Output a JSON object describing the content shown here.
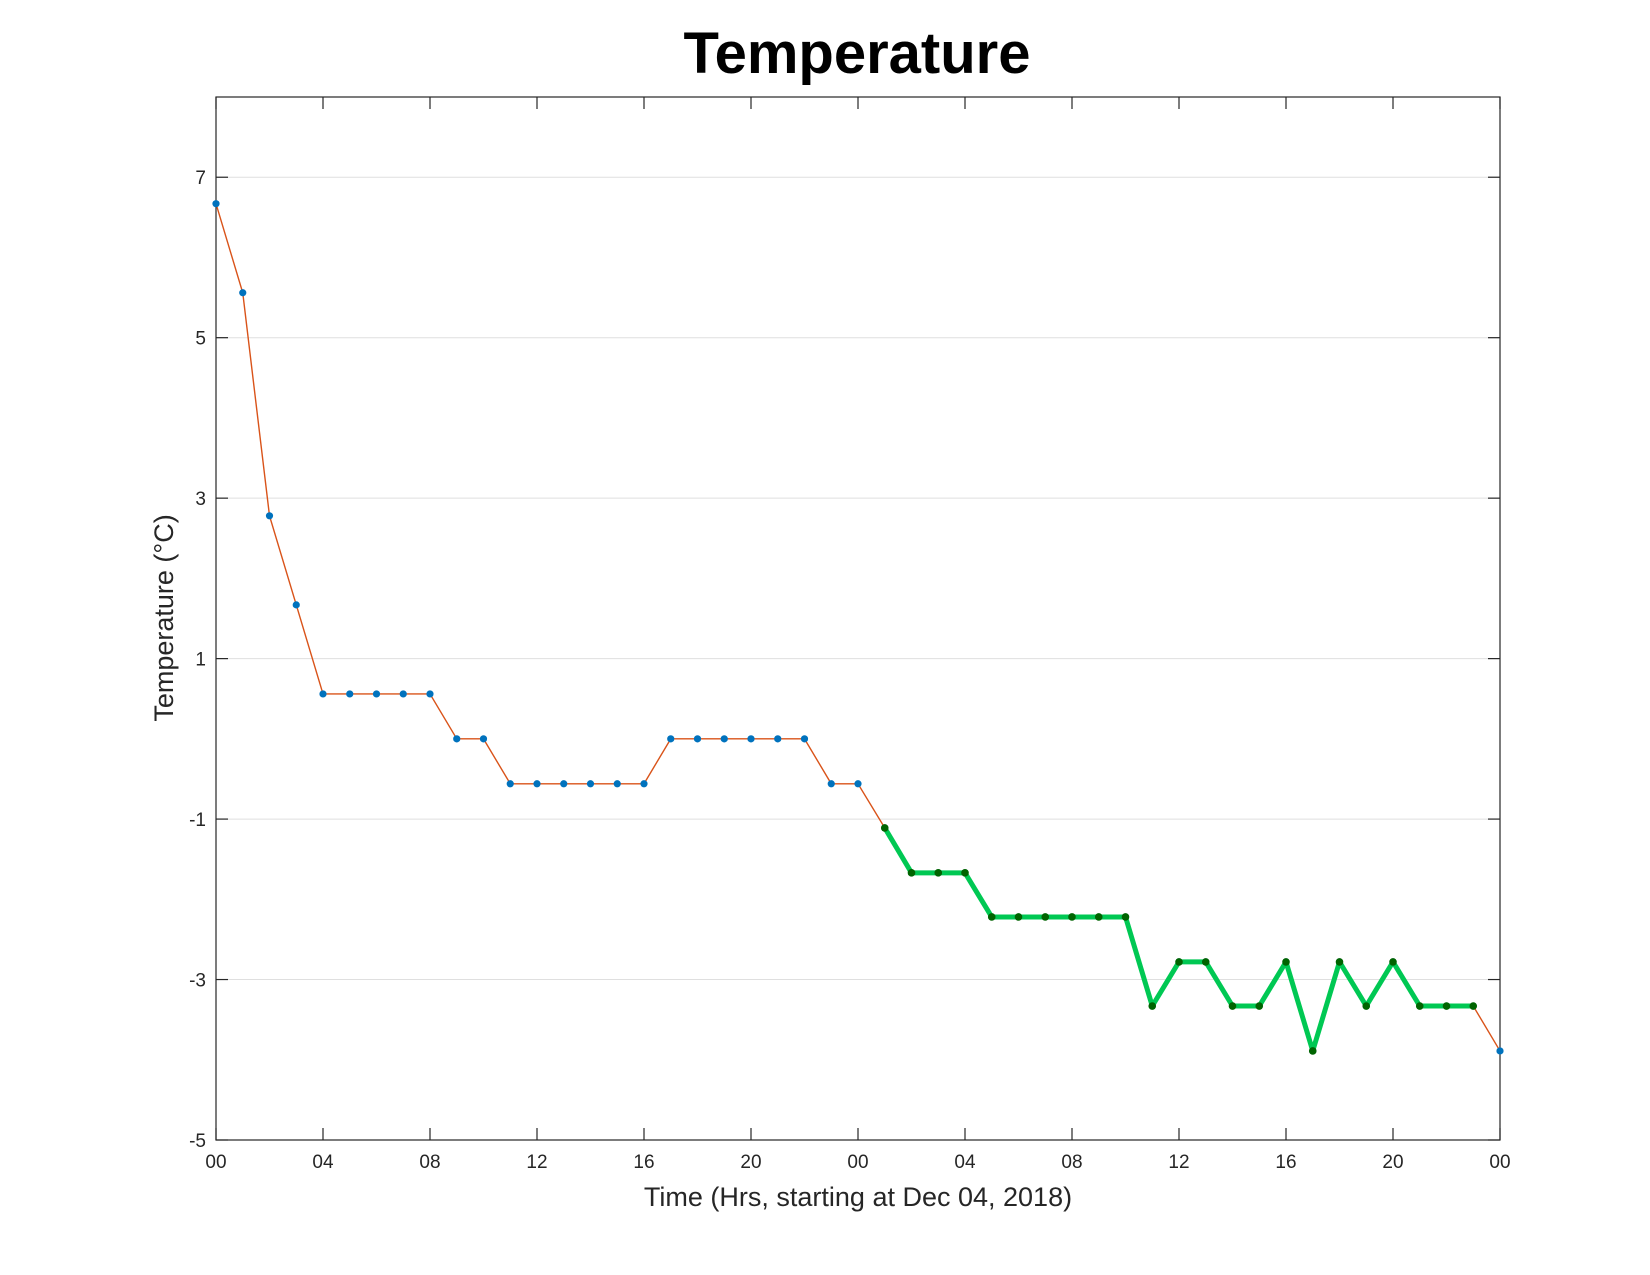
{
  "chart_data": {
    "type": "line",
    "title": "Temperature",
    "xlabel": "Time (Hrs, starting at Dec 04, 2018)",
    "ylabel": "Temperature (°C)",
    "ylim": [
      -5,
      8
    ],
    "xlim": [
      0,
      48
    ],
    "yticks": [
      -5,
      -3,
      -1,
      1,
      3,
      5,
      7
    ],
    "xticks": [
      0,
      4,
      8,
      12,
      16,
      20,
      24,
      28,
      32,
      36,
      40,
      44,
      48
    ],
    "xtick_labels": [
      "00",
      "04",
      "08",
      "12",
      "16",
      "20",
      "00",
      "04",
      "08",
      "12",
      "16",
      "20",
      "00"
    ],
    "grid": "horizontal",
    "colors": {
      "raw_line": "#d95319",
      "raw_marker": "#0072bd",
      "highlight_line": "#00c853",
      "highlight_marker": "#006400",
      "grid": "#dfdfdf",
      "axis": "#262626"
    },
    "series": [
      {
        "x": [
          0,
          1,
          2,
          3,
          4,
          5,
          6,
          7,
          8,
          9,
          10,
          11,
          12,
          13,
          14,
          15,
          16,
          17,
          18,
          19,
          20,
          21,
          22,
          23,
          24,
          25,
          26,
          27,
          28,
          29,
          30,
          31,
          32,
          33,
          34,
          35,
          36,
          37,
          38,
          39,
          40,
          41,
          42,
          43,
          44,
          45,
          46,
          47,
          48
        ],
        "values": [
          6.67,
          5.56,
          2.78,
          1.67,
          0.56,
          0.56,
          0.56,
          0.56,
          0.56,
          0,
          0,
          -0.56,
          -0.56,
          -0.56,
          -0.56,
          -0.56,
          -0.56,
          0,
          0,
          0,
          0,
          0,
          0,
          -0.56,
          -0.56,
          -1.11,
          -1.67,
          -1.67,
          -1.67,
          -2.22,
          -2.22,
          -2.22,
          -2.22,
          -2.22,
          -2.22,
          -3.33,
          -2.78,
          -2.78,
          -3.33,
          -3.33,
          -2.78,
          -3.89,
          -2.78,
          -3.33,
          -2.78,
          -3.33,
          -3.33,
          -3.33,
          -3.89
        ]
      },
      {
        "x": [
          25,
          26,
          27,
          28,
          29,
          30,
          31,
          32,
          33,
          34,
          35,
          36,
          37,
          38,
          39,
          40,
          41,
          42,
          43,
          44,
          45,
          46,
          47
        ],
        "values": [
          -1.11,
          -1.67,
          -1.67,
          -1.67,
          -2.22,
          -2.22,
          -2.22,
          -2.22,
          -2.22,
          -2.22,
          -3.33,
          -2.78,
          -2.78,
          -3.33,
          -3.33,
          -2.78,
          -3.89,
          -2.78,
          -3.33,
          -2.78,
          -3.33,
          -3.33,
          -3.33
        ]
      }
    ]
  }
}
